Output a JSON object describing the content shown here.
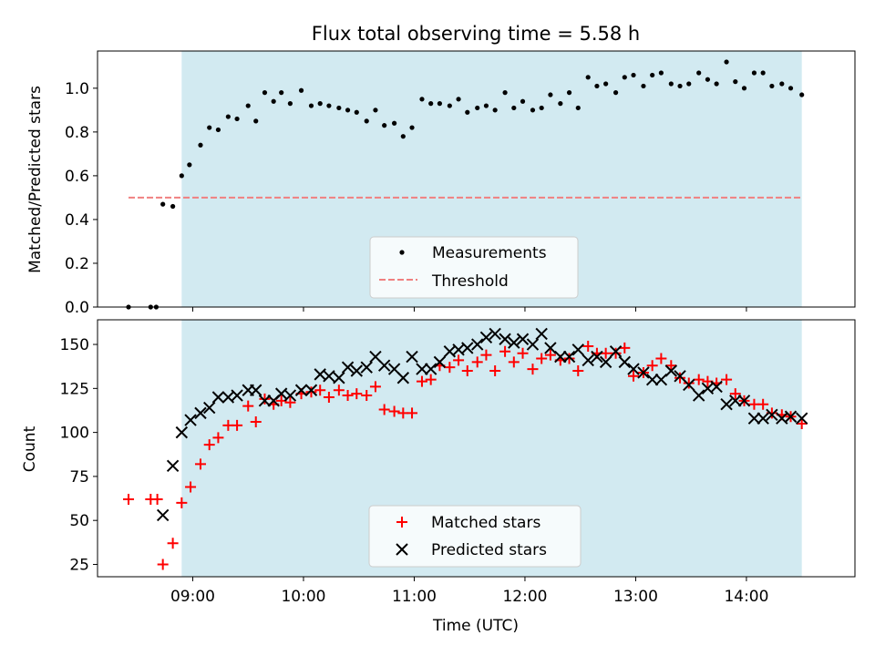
{
  "title": "Flux total observing time = 5.58 h",
  "colors": {
    "shade": "#add8e6",
    "measurement": "#000000",
    "threshold": "#f08080",
    "matched": "#ff0000",
    "predicted": "#000000"
  },
  "chart_data": [
    {
      "type": "scatter",
      "ylabel": "Matched/Predicted stars",
      "xlim": [
        8.14,
        14.98
      ],
      "ylim": [
        0,
        1.17
      ],
      "yticks": [
        0.0,
        0.2,
        0.4,
        0.6,
        0.8,
        1.0
      ],
      "ytick_labels": [
        "0.0",
        "0.2",
        "0.4",
        "0.6",
        "0.8",
        "1.0"
      ],
      "shaded_span": [
        8.9,
        14.5
      ],
      "threshold": {
        "label": "Threshold",
        "value": 0.5,
        "x": [
          8.42,
          14.5
        ]
      },
      "legend": {
        "placement": "lower center",
        "entries": [
          "Measurements",
          "Threshold"
        ]
      },
      "series": [
        {
          "name": "Measurements",
          "x": [
            8.42,
            8.62,
            8.67,
            8.73,
            8.82,
            8.9,
            8.97,
            9.07,
            9.15,
            9.23,
            9.32,
            9.4,
            9.5,
            9.57,
            9.65,
            9.73,
            9.8,
            9.88,
            9.98,
            10.07,
            10.15,
            10.23,
            10.32,
            10.4,
            10.48,
            10.57,
            10.65,
            10.73,
            10.82,
            10.9,
            10.98,
            11.07,
            11.15,
            11.23,
            11.32,
            11.4,
            11.48,
            11.57,
            11.65,
            11.73,
            11.82,
            11.9,
            11.98,
            12.07,
            12.15,
            12.23,
            12.32,
            12.4,
            12.48,
            12.57,
            12.65,
            12.73,
            12.82,
            12.9,
            12.98,
            13.07,
            13.15,
            13.23,
            13.32,
            13.4,
            13.48,
            13.57,
            13.65,
            13.73,
            13.82,
            13.9,
            13.98,
            14.07,
            14.15,
            14.23,
            14.32,
            14.4,
            14.5
          ],
          "values": [
            0.0,
            0.0,
            0.0,
            0.47,
            0.46,
            0.6,
            0.65,
            0.74,
            0.82,
            0.81,
            0.87,
            0.86,
            0.92,
            0.85,
            0.98,
            0.94,
            0.98,
            0.93,
            0.99,
            0.92,
            0.93,
            0.92,
            0.91,
            0.9,
            0.89,
            0.85,
            0.9,
            0.83,
            0.84,
            0.78,
            0.82,
            0.95,
            0.93,
            0.93,
            0.92,
            0.95,
            0.89,
            0.91,
            0.92,
            0.9,
            0.98,
            0.91,
            0.94,
            0.9,
            0.91,
            0.97,
            0.93,
            0.98,
            0.91,
            1.05,
            1.01,
            1.02,
            0.98,
            1.05,
            1.06,
            1.01,
            1.06,
            1.07,
            1.02,
            1.01,
            1.02,
            1.07,
            1.04,
            1.02,
            1.12,
            1.03,
            1.0,
            1.07,
            1.07,
            1.01,
            1.02,
            1.0,
            0.97
          ]
        }
      ]
    },
    {
      "type": "scatter",
      "xlabel": "Time (UTC)",
      "ylabel": "Count",
      "xlim": [
        8.14,
        14.98
      ],
      "ylim": [
        18,
        164
      ],
      "xticks": [
        9,
        10,
        11,
        12,
        13,
        14
      ],
      "xtick_labels": [
        "09:00",
        "10:00",
        "11:00",
        "12:00",
        "13:00",
        "14:00"
      ],
      "yticks": [
        25,
        50,
        75,
        100,
        125,
        150
      ],
      "ytick_labels": [
        "25",
        "50",
        "75",
        "100",
        "125",
        "150"
      ],
      "shaded_span": [
        8.9,
        14.5
      ],
      "legend": {
        "placement": "lower center",
        "entries": [
          "Matched stars",
          "Predicted stars"
        ]
      },
      "series": [
        {
          "name": "Matched stars",
          "x": [
            8.42,
            8.62,
            8.68,
            8.73,
            8.82,
            8.9,
            8.98,
            9.07,
            9.15,
            9.23,
            9.32,
            9.4,
            9.5,
            9.57,
            9.65,
            9.73,
            9.8,
            9.88,
            9.98,
            10.07,
            10.15,
            10.23,
            10.32,
            10.4,
            10.48,
            10.57,
            10.65,
            10.73,
            10.82,
            10.9,
            10.98,
            11.07,
            11.15,
            11.23,
            11.32,
            11.4,
            11.48,
            11.57,
            11.65,
            11.73,
            11.82,
            11.9,
            11.98,
            12.07,
            12.15,
            12.23,
            12.32,
            12.4,
            12.48,
            12.57,
            12.65,
            12.73,
            12.82,
            12.9,
            12.98,
            13.07,
            13.15,
            13.23,
            13.32,
            13.4,
            13.48,
            13.57,
            13.65,
            13.73,
            13.82,
            13.9,
            13.98,
            14.07,
            14.15,
            14.23,
            14.32,
            14.4,
            14.5
          ],
          "values": [
            62,
            62,
            62,
            25,
            37,
            60,
            69,
            82,
            93,
            97,
            104,
            104,
            115,
            106,
            119,
            116,
            118,
            117,
            122,
            123,
            124,
            120,
            124,
            121,
            122,
            121,
            126,
            113,
            112,
            111,
            111,
            129,
            130,
            138,
            137,
            141,
            135,
            140,
            144,
            135,
            146,
            140,
            145,
            136,
            142,
            144,
            141,
            142,
            135,
            149,
            145,
            145,
            145,
            148,
            132,
            134,
            138,
            142,
            138,
            131,
            128,
            130,
            129,
            128,
            130,
            122,
            118,
            116,
            116,
            111,
            110,
            109,
            105
          ]
        },
        {
          "name": "Predicted stars",
          "x": [
            8.73,
            8.82,
            8.9,
            8.98,
            9.07,
            9.15,
            9.23,
            9.32,
            9.4,
            9.5,
            9.57,
            9.65,
            9.73,
            9.8,
            9.88,
            9.98,
            10.07,
            10.15,
            10.23,
            10.32,
            10.4,
            10.48,
            10.57,
            10.65,
            10.73,
            10.82,
            10.9,
            10.98,
            11.07,
            11.15,
            11.23,
            11.32,
            11.4,
            11.48,
            11.57,
            11.65,
            11.73,
            11.82,
            11.9,
            11.98,
            12.07,
            12.15,
            12.23,
            12.32,
            12.4,
            12.48,
            12.57,
            12.65,
            12.73,
            12.82,
            12.9,
            12.98,
            13.07,
            13.15,
            13.23,
            13.32,
            13.4,
            13.48,
            13.57,
            13.65,
            13.73,
            13.82,
            13.9,
            13.98,
            14.07,
            14.15,
            14.23,
            14.32,
            14.4,
            14.5
          ],
          "values": [
            53,
            81,
            100,
            107,
            111,
            114,
            120,
            120,
            121,
            124,
            124,
            118,
            118,
            122,
            121,
            124,
            124,
            133,
            132,
            131,
            137,
            135,
            137,
            143,
            138,
            136,
            131,
            143,
            136,
            136,
            140,
            146,
            147,
            148,
            150,
            154,
            156,
            153,
            151,
            153,
            150,
            156,
            148,
            143,
            143,
            147,
            141,
            143,
            140,
            146,
            140,
            136,
            134,
            130,
            130,
            135,
            132,
            127,
            121,
            125,
            126,
            116,
            118,
            118,
            108,
            108,
            110,
            108,
            109,
            108
          ]
        }
      ]
    }
  ]
}
